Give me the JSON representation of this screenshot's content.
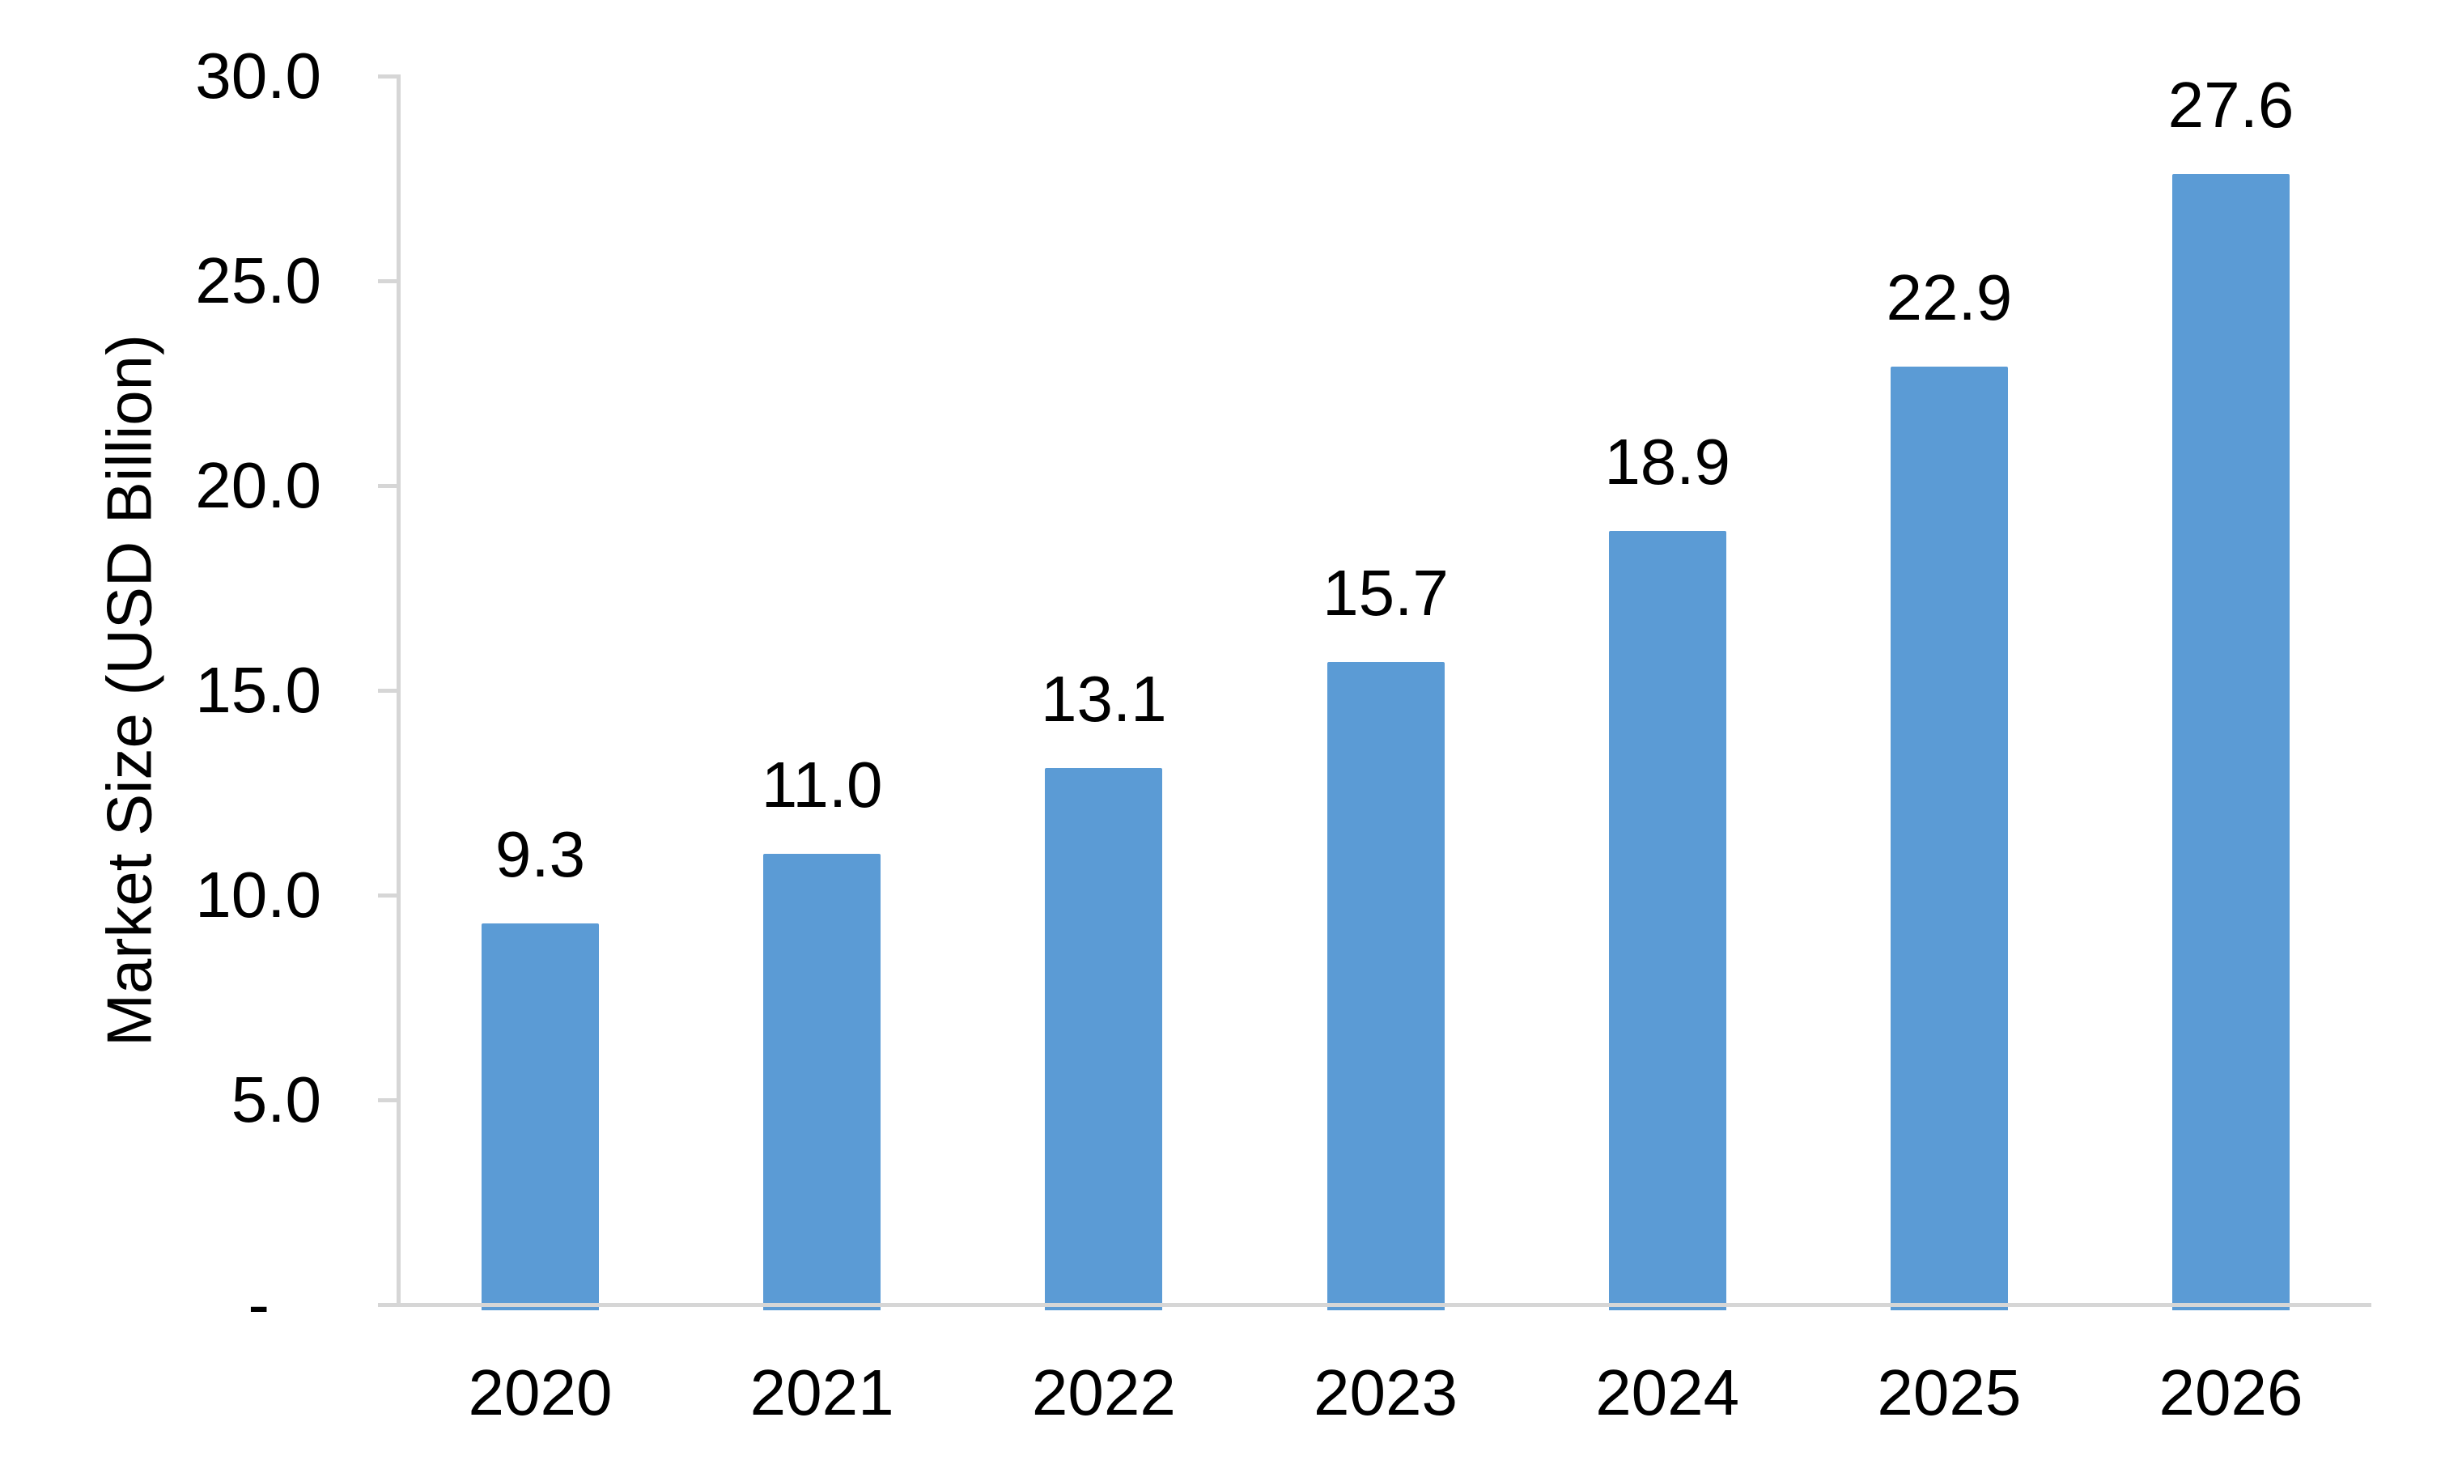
{
  "chart_data": {
    "type": "bar",
    "categories": [
      "2020",
      "2021",
      "2022",
      "2023",
      "2024",
      "2025",
      "2026"
    ],
    "values": [
      9.3,
      11.0,
      13.1,
      15.7,
      18.9,
      22.9,
      27.6
    ],
    "data_labels": [
      "9.3",
      "11.0",
      "13.1",
      "15.7",
      "18.9",
      "22.9",
      "27.6"
    ],
    "xlabel": "",
    "ylabel": "Market Size (USD Billion)",
    "ylim": [
      0,
      30
    ],
    "ytick_labels_top_to_bottom": [
      "30.0",
      "25.0",
      "20.0",
      "15.0",
      "10.0",
      "5.0",
      "-"
    ],
    "grid": false,
    "legend": "none",
    "colors": {
      "bar": "#5B9BD5",
      "axis": "#D6D6D6",
      "text": "#000000",
      "background": "#FFFFFF"
    }
  }
}
